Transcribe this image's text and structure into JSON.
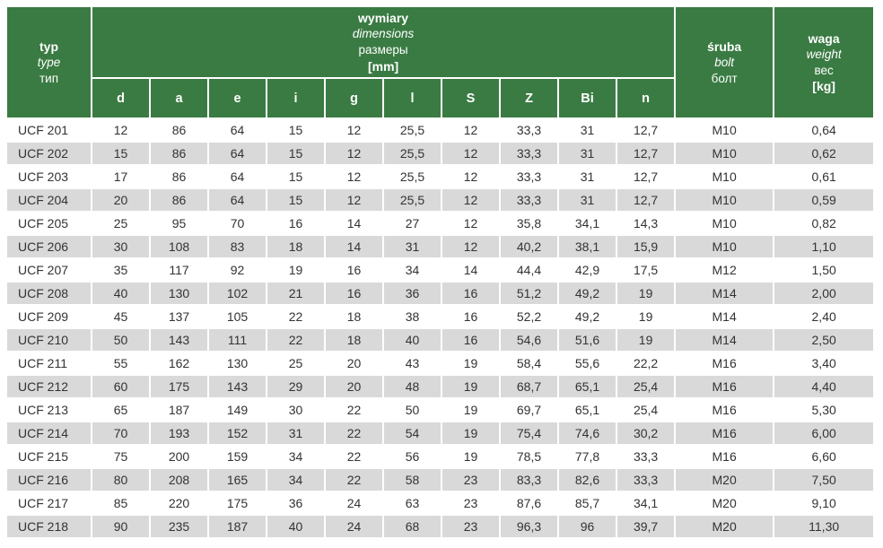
{
  "colors": {
    "header_green": "#3a7b43",
    "alt_row_gray": "#d9d9d9",
    "row_white": "#ffffff",
    "data_text": "#333333",
    "header_text": "#ffffff"
  },
  "table": {
    "header": {
      "type": {
        "pl": "typ",
        "en": "type",
        "ru": "тип"
      },
      "dims": {
        "pl": "wymiary",
        "en": "dimensions",
        "ru": "размеры",
        "unit": "[mm]"
      },
      "dim_columns": [
        "d",
        "a",
        "e",
        "i",
        "g",
        "l",
        "S",
        "Z",
        "Bi",
        "n"
      ],
      "bolt": {
        "pl": "śruba",
        "en": "bolt",
        "ru": "болт"
      },
      "weight": {
        "pl": "waga",
        "en": "weight",
        "ru": "вес",
        "unit": "[kg]"
      }
    },
    "columns_order": [
      "type",
      "d",
      "a",
      "e",
      "i",
      "g",
      "l",
      "S",
      "Z",
      "Bi",
      "n",
      "bolt",
      "weight"
    ],
    "rows": [
      {
        "type": "UCF 201",
        "d": "12",
        "a": "86",
        "e": "64",
        "i": "15",
        "g": "12",
        "l": "25,5",
        "S": "12",
        "Z": "33,3",
        "Bi": "31",
        "n": "12,7",
        "bolt": "M10",
        "weight": "0,64"
      },
      {
        "type": "UCF 202",
        "d": "15",
        "a": "86",
        "e": "64",
        "i": "15",
        "g": "12",
        "l": "25,5",
        "S": "12",
        "Z": "33,3",
        "Bi": "31",
        "n": "12,7",
        "bolt": "M10",
        "weight": "0,62"
      },
      {
        "type": "UCF 203",
        "d": "17",
        "a": "86",
        "e": "64",
        "i": "15",
        "g": "12",
        "l": "25,5",
        "S": "12",
        "Z": "33,3",
        "Bi": "31",
        "n": "12,7",
        "bolt": "M10",
        "weight": "0,61"
      },
      {
        "type": "UCF 204",
        "d": "20",
        "a": "86",
        "e": "64",
        "i": "15",
        "g": "12",
        "l": "25,5",
        "S": "12",
        "Z": "33,3",
        "Bi": "31",
        "n": "12,7",
        "bolt": "M10",
        "weight": "0,59"
      },
      {
        "type": "UCF 205",
        "d": "25",
        "a": "95",
        "e": "70",
        "i": "16",
        "g": "14",
        "l": "27",
        "S": "12",
        "Z": "35,8",
        "Bi": "34,1",
        "n": "14,3",
        "bolt": "M10",
        "weight": "0,82"
      },
      {
        "type": "UCF 206",
        "d": "30",
        "a": "108",
        "e": "83",
        "i": "18",
        "g": "14",
        "l": "31",
        "S": "12",
        "Z": "40,2",
        "Bi": "38,1",
        "n": "15,9",
        "bolt": "M10",
        "weight": "1,10"
      },
      {
        "type": "UCF 207",
        "d": "35",
        "a": "117",
        "e": "92",
        "i": "19",
        "g": "16",
        "l": "34",
        "S": "14",
        "Z": "44,4",
        "Bi": "42,9",
        "n": "17,5",
        "bolt": "M12",
        "weight": "1,50"
      },
      {
        "type": "UCF 208",
        "d": "40",
        "a": "130",
        "e": "102",
        "i": "21",
        "g": "16",
        "l": "36",
        "S": "16",
        "Z": "51,2",
        "Bi": "49,2",
        "n": "19",
        "bolt": "M14",
        "weight": "2,00"
      },
      {
        "type": "UCF 209",
        "d": "45",
        "a": "137",
        "e": "105",
        "i": "22",
        "g": "18",
        "l": "38",
        "S": "16",
        "Z": "52,2",
        "Bi": "49,2",
        "n": "19",
        "bolt": "M14",
        "weight": "2,40"
      },
      {
        "type": "UCF 210",
        "d": "50",
        "a": "143",
        "e": "111",
        "i": "22",
        "g": "18",
        "l": "40",
        "S": "16",
        "Z": "54,6",
        "Bi": "51,6",
        "n": "19",
        "bolt": "M14",
        "weight": "2,50"
      },
      {
        "type": "UCF 211",
        "d": "55",
        "a": "162",
        "e": "130",
        "i": "25",
        "g": "20",
        "l": "43",
        "S": "19",
        "Z": "58,4",
        "Bi": "55,6",
        "n": "22,2",
        "bolt": "M16",
        "weight": "3,40"
      },
      {
        "type": "UCF 212",
        "d": "60",
        "a": "175",
        "e": "143",
        "i": "29",
        "g": "20",
        "l": "48",
        "S": "19",
        "Z": "68,7",
        "Bi": "65,1",
        "n": "25,4",
        "bolt": "M16",
        "weight": "4,40"
      },
      {
        "type": "UCF 213",
        "d": "65",
        "a": "187",
        "e": "149",
        "i": "30",
        "g": "22",
        "l": "50",
        "S": "19",
        "Z": "69,7",
        "Bi": "65,1",
        "n": "25,4",
        "bolt": "M16",
        "weight": "5,30"
      },
      {
        "type": "UCF 214",
        "d": "70",
        "a": "193",
        "e": "152",
        "i": "31",
        "g": "22",
        "l": "54",
        "S": "19",
        "Z": "75,4",
        "Bi": "74,6",
        "n": "30,2",
        "bolt": "M16",
        "weight": "6,00"
      },
      {
        "type": "UCF 215",
        "d": "75",
        "a": "200",
        "e": "159",
        "i": "34",
        "g": "22",
        "l": "56",
        "S": "19",
        "Z": "78,5",
        "Bi": "77,8",
        "n": "33,3",
        "bolt": "M16",
        "weight": "6,60"
      },
      {
        "type": "UCF 216",
        "d": "80",
        "a": "208",
        "e": "165",
        "i": "34",
        "g": "22",
        "l": "58",
        "S": "23",
        "Z": "83,3",
        "Bi": "82,6",
        "n": "33,3",
        "bolt": "M20",
        "weight": "7,50"
      },
      {
        "type": "UCF 217",
        "d": "85",
        "a": "220",
        "e": "175",
        "i": "36",
        "g": "24",
        "l": "63",
        "S": "23",
        "Z": "87,6",
        "Bi": "85,7",
        "n": "34,1",
        "bolt": "M20",
        "weight": "9,10"
      },
      {
        "type": "UCF 218",
        "d": "90",
        "a": "235",
        "e": "187",
        "i": "40",
        "g": "24",
        "l": "68",
        "S": "23",
        "Z": "96,3",
        "Bi": "96",
        "n": "39,7",
        "bolt": "M20",
        "weight": "11,30"
      }
    ]
  }
}
